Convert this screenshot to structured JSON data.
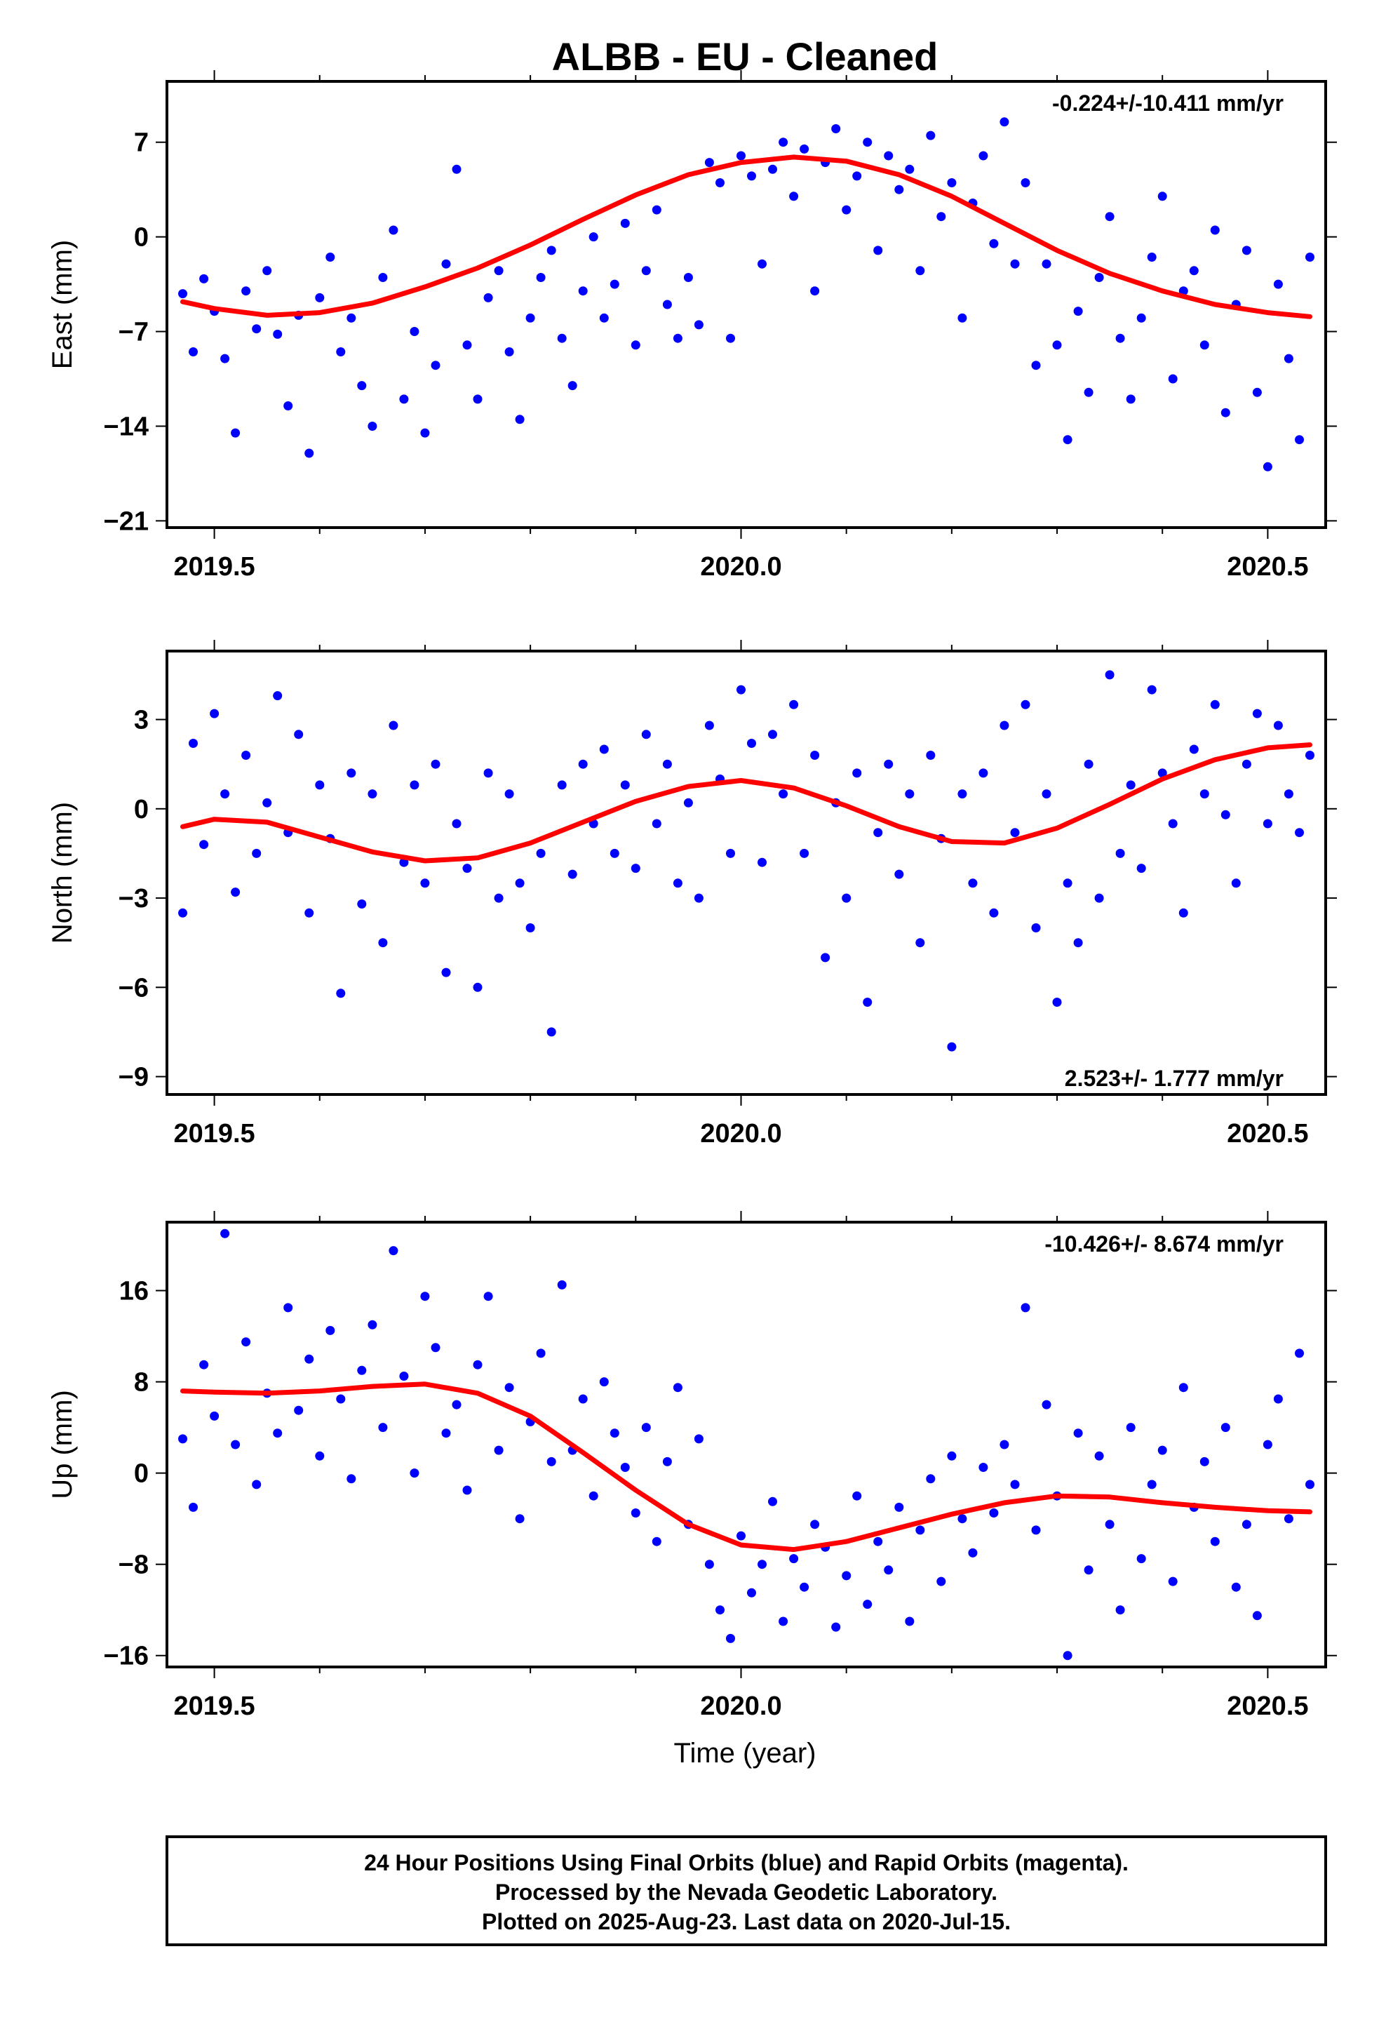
{
  "title": "ALBB  - EU - Cleaned",
  "xlabel": "Time (year)",
  "footer": {
    "line1": "24 Hour Positions Using Final Orbits (blue) and Rapid Orbits (magenta).",
    "line2": "Processed by the Nevada Geodetic Laboratory.",
    "line3": "Plotted on 2025-Aug-23. Last data on 2020-Jul-15."
  },
  "colors": {
    "points": "#0000ff",
    "fit": "#ff0000",
    "axes": "#000000"
  },
  "chart_data": [
    {
      "type": "scatter",
      "ylabel": "East (mm)",
      "rate": "-0.224+/-10.411 mm/yr",
      "xlim": [
        2019.455,
        2020.555
      ],
      "ylim": [
        -21.5,
        11.5
      ],
      "xticks": [
        "2019.5",
        "2020.0",
        "2020.5"
      ],
      "yticks": [
        "7",
        "0",
        "-7",
        "-14",
        "-21"
      ],
      "series": [
        {
          "x": [
            2019.47,
            2019.48,
            2019.49,
            2019.5,
            2019.51,
            2019.52,
            2019.53,
            2019.54,
            2019.55,
            2019.56,
            2019.57,
            2019.58,
            2019.59,
            2019.6,
            2019.61,
            2019.62,
            2019.63,
            2019.64,
            2019.65,
            2019.66,
            2019.67,
            2019.68,
            2019.69,
            2019.7,
            2019.71,
            2019.72,
            2019.73,
            2019.74,
            2019.75,
            2019.76,
            2019.77,
            2019.78,
            2019.79,
            2019.8,
            2019.81,
            2019.82,
            2019.83,
            2019.84,
            2019.85,
            2019.86,
            2019.87,
            2019.88,
            2019.89,
            2019.9,
            2019.91,
            2019.92,
            2019.93,
            2019.94,
            2019.95,
            2019.96,
            2019.97,
            2019.98,
            2019.99,
            2020.0,
            2020.01,
            2020.02,
            2020.03,
            2020.04,
            2020.05,
            2020.06,
            2020.07,
            2020.08,
            2020.09,
            2020.1,
            2020.11,
            2020.12,
            2020.13,
            2020.14,
            2020.15,
            2020.16,
            2020.17,
            2020.18,
            2020.19,
            2020.2,
            2020.21,
            2020.22,
            2020.23,
            2020.24,
            2020.25,
            2020.26,
            2020.27,
            2020.28,
            2020.29,
            2020.3,
            2020.31,
            2020.32,
            2020.33,
            2020.34,
            2020.35,
            2020.36,
            2020.37,
            2020.38,
            2020.39,
            2020.4,
            2020.41,
            2020.42,
            2020.43,
            2020.44,
            2020.45,
            2020.46,
            2020.47,
            2020.48,
            2020.49,
            2020.5,
            2020.51,
            2020.52,
            2020.53,
            2020.54
          ],
          "y": [
            -4.2,
            -8.5,
            -3.1,
            -5.5,
            -9.0,
            -14.5,
            -4.0,
            -6.8,
            -2.5,
            -7.2,
            -12.5,
            -5.8,
            -16.0,
            -4.5,
            -1.5,
            -8.5,
            -6.0,
            -11.0,
            -14.0,
            -3.0,
            0.5,
            -12.0,
            -7.0,
            -14.5,
            -9.5,
            -2.0,
            5.0,
            -8.0,
            -12.0,
            -4.5,
            -2.5,
            -8.5,
            -13.5,
            -6.0,
            -3.0,
            -1.0,
            -7.5,
            -11.0,
            -4.0,
            0.0,
            -6.0,
            -3.5,
            1.0,
            -8.0,
            -2.5,
            2.0,
            -5.0,
            -7.5,
            -3.0,
            -6.5,
            5.5,
            4.0,
            -7.5,
            6.0,
            4.5,
            -2.0,
            5.0,
            7.0,
            3.0,
            6.5,
            -4.0,
            5.5,
            8.0,
            2.0,
            4.5,
            7.0,
            -1.0,
            6.0,
            3.5,
            5.0,
            -2.5,
            7.5,
            1.5,
            4.0,
            -6.0,
            2.5,
            6.0,
            -0.5,
            8.5,
            -2.0,
            4.0,
            -9.5,
            -2.0,
            -8.0,
            -15.0,
            -5.5,
            -11.5,
            -3.0,
            1.5,
            -7.5,
            -12.0,
            -6.0,
            -1.5,
            3.0,
            -10.5,
            -4.0,
            -2.5,
            -8.0,
            0.5,
            -13.0,
            -5.0,
            -1.0,
            -11.5,
            -17.0,
            -3.5,
            -9.0,
            -15.0,
            -1.5
          ]
        }
      ],
      "fit": {
        "x": [
          2019.47,
          2019.5,
          2019.55,
          2019.6,
          2019.65,
          2019.7,
          2019.75,
          2019.8,
          2019.85,
          2019.9,
          2019.95,
          2020.0,
          2020.05,
          2020.1,
          2020.15,
          2020.2,
          2020.25,
          2020.3,
          2020.35,
          2020.4,
          2020.45,
          2020.5,
          2020.54
        ],
        "y": [
          -4.8,
          -5.3,
          -5.8,
          -5.6,
          -4.9,
          -3.7,
          -2.3,
          -0.6,
          1.3,
          3.1,
          4.6,
          5.5,
          5.9,
          5.6,
          4.6,
          3.0,
          1.0,
          -1.0,
          -2.7,
          -4.0,
          -5.0,
          -5.6,
          -5.9
        ]
      }
    },
    {
      "type": "scatter",
      "ylabel": "North (mm)",
      "rate": "2.523+/- 1.777 mm/yr",
      "xlim": [
        2019.455,
        2020.555
      ],
      "ylim": [
        -9.6,
        5.3
      ],
      "xticks": [
        "2019.5",
        "2020.0",
        "2020.5"
      ],
      "yticks": [
        "3",
        "0",
        "-3",
        "-6",
        "-9"
      ],
      "series": [
        {
          "x": [
            2019.47,
            2019.48,
            2019.49,
            2019.5,
            2019.51,
            2019.52,
            2019.53,
            2019.54,
            2019.55,
            2019.56,
            2019.57,
            2019.58,
            2019.59,
            2019.6,
            2019.61,
            2019.62,
            2019.63,
            2019.64,
            2019.65,
            2019.66,
            2019.67,
            2019.68,
            2019.69,
            2019.7,
            2019.71,
            2019.72,
            2019.73,
            2019.74,
            2019.75,
            2019.76,
            2019.77,
            2019.78,
            2019.79,
            2019.8,
            2019.81,
            2019.82,
            2019.83,
            2019.84,
            2019.85,
            2019.86,
            2019.87,
            2019.88,
            2019.89,
            2019.9,
            2019.91,
            2019.92,
            2019.93,
            2019.94,
            2019.95,
            2019.96,
            2019.97,
            2019.98,
            2019.99,
            2020.0,
            2020.01,
            2020.02,
            2020.03,
            2020.04,
            2020.05,
            2020.06,
            2020.07,
            2020.08,
            2020.09,
            2020.1,
            2020.11,
            2020.12,
            2020.13,
            2020.14,
            2020.15,
            2020.16,
            2020.17,
            2020.18,
            2020.19,
            2020.2,
            2020.21,
            2020.22,
            2020.23,
            2020.24,
            2020.25,
            2020.26,
            2020.27,
            2020.28,
            2020.29,
            2020.3,
            2020.31,
            2020.32,
            2020.33,
            2020.34,
            2020.35,
            2020.36,
            2020.37,
            2020.38,
            2020.39,
            2020.4,
            2020.41,
            2020.42,
            2020.43,
            2020.44,
            2020.45,
            2020.46,
            2020.47,
            2020.48,
            2020.49,
            2020.5,
            2020.51,
            2020.52,
            2020.53,
            2020.54
          ],
          "y": [
            -3.5,
            2.2,
            -1.2,
            3.2,
            0.5,
            -2.8,
            1.8,
            -1.5,
            0.2,
            3.8,
            -0.8,
            2.5,
            -3.5,
            0.8,
            -1.0,
            -6.2,
            1.2,
            -3.2,
            0.5,
            -4.5,
            2.8,
            -1.8,
            0.8,
            -2.5,
            1.5,
            -5.5,
            -0.5,
            -2.0,
            -6.0,
            1.2,
            -3.0,
            0.5,
            -2.5,
            -4.0,
            -1.5,
            -7.5,
            0.8,
            -2.2,
            1.5,
            -0.5,
            2.0,
            -1.5,
            0.8,
            -2.0,
            2.5,
            -0.5,
            1.5,
            -2.5,
            0.2,
            -3.0,
            2.8,
            1.0,
            -1.5,
            4.0,
            2.2,
            -1.8,
            2.5,
            0.5,
            3.5,
            -1.5,
            1.8,
            -5.0,
            0.2,
            -3.0,
            1.2,
            -6.5,
            -0.8,
            1.5,
            -2.2,
            0.5,
            -4.5,
            1.8,
            -1.0,
            -8.0,
            0.5,
            -2.5,
            1.2,
            -3.5,
            2.8,
            -0.8,
            3.5,
            -4.0,
            0.5,
            -6.5,
            -2.5,
            -4.5,
            1.5,
            -3.0,
            4.5,
            -1.5,
            0.8,
            -2.0,
            4.0,
            1.2,
            -0.5,
            -3.5,
            2.0,
            0.5,
            3.5,
            -0.2,
            -2.5,
            1.5,
            3.2,
            -0.5,
            2.8,
            0.5,
            -0.8,
            1.8
          ]
        }
      ],
      "fit": {
        "x": [
          2019.47,
          2019.5,
          2019.55,
          2019.6,
          2019.65,
          2019.7,
          2019.75,
          2019.8,
          2019.85,
          2019.9,
          2019.95,
          2020.0,
          2020.05,
          2020.1,
          2020.15,
          2020.2,
          2020.25,
          2020.3,
          2020.35,
          2020.4,
          2020.45,
          2020.5,
          2020.54
        ],
        "y": [
          -0.6,
          -0.35,
          -0.45,
          -0.95,
          -1.45,
          -1.75,
          -1.65,
          -1.15,
          -0.45,
          0.25,
          0.75,
          0.95,
          0.7,
          0.1,
          -0.6,
          -1.1,
          -1.15,
          -0.65,
          0.15,
          1.0,
          1.65,
          2.05,
          2.15
        ]
      }
    },
    {
      "type": "scatter",
      "ylabel": "Up (mm)",
      "rate": "-10.426+/- 8.674 mm/yr",
      "xlim": [
        2019.455,
        2020.555
      ],
      "ylim": [
        -17.0,
        22.0
      ],
      "xticks": [
        "2019.5",
        "2020.0",
        "2020.5"
      ],
      "yticks": [
        "16",
        "8",
        "0",
        "-8",
        "-16"
      ],
      "series": [
        {
          "x": [
            2019.47,
            2019.48,
            2019.49,
            2019.5,
            2019.51,
            2019.52,
            2019.53,
            2019.54,
            2019.55,
            2019.56,
            2019.57,
            2019.58,
            2019.59,
            2019.6,
            2019.61,
            2019.62,
            2019.63,
            2019.64,
            2019.65,
            2019.66,
            2019.67,
            2019.68,
            2019.69,
            2019.7,
            2019.71,
            2019.72,
            2019.73,
            2019.74,
            2019.75,
            2019.76,
            2019.77,
            2019.78,
            2019.79,
            2019.8,
            2019.81,
            2019.82,
            2019.83,
            2019.84,
            2019.85,
            2019.86,
            2019.87,
            2019.88,
            2019.89,
            2019.9,
            2019.91,
            2019.92,
            2019.93,
            2019.94,
            2019.95,
            2019.96,
            2019.97,
            2019.98,
            2019.99,
            2020.0,
            2020.01,
            2020.02,
            2020.03,
            2020.04,
            2020.05,
            2020.06,
            2020.07,
            2020.08,
            2020.09,
            2020.1,
            2020.11,
            2020.12,
            2020.13,
            2020.14,
            2020.15,
            2020.16,
            2020.17,
            2020.18,
            2020.19,
            2020.2,
            2020.21,
            2020.22,
            2020.23,
            2020.24,
            2020.25,
            2020.26,
            2020.27,
            2020.28,
            2020.29,
            2020.3,
            2020.31,
            2020.32,
            2020.33,
            2020.34,
            2020.35,
            2020.36,
            2020.37,
            2020.38,
            2020.39,
            2020.4,
            2020.41,
            2020.42,
            2020.43,
            2020.44,
            2020.45,
            2020.46,
            2020.47,
            2020.48,
            2020.49,
            2020.5,
            2020.51,
            2020.52,
            2020.53,
            2020.54
          ],
          "y": [
            3.0,
            -3.0,
            9.5,
            5.0,
            21.0,
            2.5,
            11.5,
            -1.0,
            7.0,
            3.5,
            14.5,
            5.5,
            10.0,
            1.5,
            12.5,
            6.5,
            -0.5,
            9.0,
            13.0,
            4.0,
            19.5,
            8.5,
            0.0,
            15.5,
            11.0,
            3.5,
            6.0,
            -1.5,
            9.5,
            15.5,
            2.0,
            7.5,
            -4.0,
            4.5,
            10.5,
            1.0,
            16.5,
            2.0,
            6.5,
            -2.0,
            8.0,
            3.5,
            0.5,
            -3.5,
            4.0,
            -6.0,
            1.0,
            7.5,
            -4.5,
            3.0,
            -8.0,
            -12.0,
            -14.5,
            -5.5,
            -10.5,
            -8.0,
            -2.5,
            -13.0,
            -7.5,
            -10.0,
            -4.5,
            -6.5,
            -13.5,
            -9.0,
            -2.0,
            -11.5,
            -6.0,
            -8.5,
            -3.0,
            -13.0,
            -5.0,
            -0.5,
            -9.5,
            1.5,
            -4.0,
            -7.0,
            0.5,
            -3.5,
            2.5,
            -1.0,
            14.5,
            -5.0,
            6.0,
            -2.0,
            -16.0,
            3.5,
            -8.5,
            1.5,
            -4.5,
            -12.0,
            4.0,
            -7.5,
            -1.0,
            2.0,
            -9.5,
            7.5,
            -3.0,
            1.0,
            -6.0,
            4.0,
            -10.0,
            -4.5,
            -12.5,
            2.5,
            6.5,
            -4.0,
            10.5,
            -1.0
          ]
        }
      ],
      "fit": {
        "x": [
          2019.47,
          2019.5,
          2019.55,
          2019.6,
          2019.65,
          2019.7,
          2019.75,
          2019.8,
          2019.85,
          2019.9,
          2019.95,
          2020.0,
          2020.05,
          2020.1,
          2020.15,
          2020.2,
          2020.25,
          2020.3,
          2020.35,
          2020.4,
          2020.45,
          2020.5,
          2020.54
        ],
        "y": [
          7.2,
          7.1,
          7.0,
          7.2,
          7.6,
          7.8,
          7.0,
          5.0,
          1.8,
          -1.5,
          -4.5,
          -6.3,
          -6.7,
          -6.0,
          -4.8,
          -3.6,
          -2.6,
          -2.0,
          -2.1,
          -2.6,
          -3.0,
          -3.3,
          -3.4
        ]
      }
    }
  ]
}
